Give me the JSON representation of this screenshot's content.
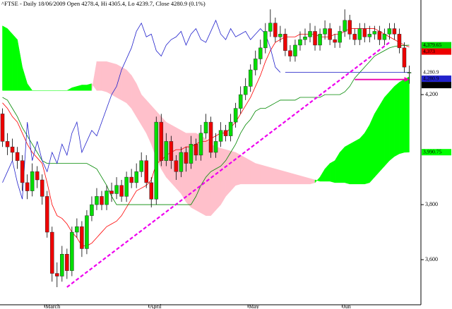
{
  "chart_data": {
    "type": "candlestick",
    "title": "^FTSE - Daily 18/06/2009 Open 4278.4, Hi 4305.4, Lo 4239.7, Close 4280.9 (0.1%)",
    "categories": [
      null,
      null,
      null,
      null,
      null,
      null,
      null,
      null,
      null,
      "March",
      null,
      null,
      null,
      null,
      null,
      null,
      null,
      null,
      null,
      null,
      null,
      null,
      null,
      null,
      null,
      null,
      null,
      null,
      null,
      null,
      "April",
      null,
      null,
      null,
      null,
      null,
      null,
      null,
      null,
      null,
      null,
      null,
      null,
      null,
      null,
      null,
      null,
      null,
      null,
      null,
      "May",
      null,
      null,
      null,
      null,
      null,
      null,
      null,
      null,
      null,
      null,
      null,
      null,
      null,
      null,
      null,
      null,
      null,
      null,
      "Jun",
      null,
      null,
      null,
      null,
      null,
      null,
      null,
      null,
      null,
      null,
      null,
      null,
      null
    ],
    "candles": [
      [
        4130,
        4150,
        4010,
        4030
      ],
      [
        4030,
        4060,
        3980,
        4010
      ],
      [
        4010,
        4040,
        3960,
        3990
      ],
      [
        3990,
        4010,
        3930,
        3960
      ],
      [
        3960,
        3980,
        3850,
        3880
      ],
      [
        3880,
        3910,
        3820,
        3850
      ],
      [
        3850,
        3950,
        3830,
        3920
      ],
      [
        3920,
        3940,
        3860,
        3890
      ],
      [
        3890,
        3910,
        3800,
        3830
      ],
      [
        3830,
        3850,
        3680,
        3700
      ],
      [
        3700,
        3720,
        3520,
        3550
      ],
      [
        3550,
        3590,
        3500,
        3540
      ],
      [
        3540,
        3650,
        3520,
        3620
      ],
      [
        3620,
        3640,
        3530,
        3560
      ],
      [
        3560,
        3720,
        3540,
        3700
      ],
      [
        3700,
        3750,
        3680,
        3720
      ],
      [
        3720,
        3740,
        3610,
        3640
      ],
      [
        3640,
        3780,
        3620,
        3760
      ],
      [
        3760,
        3830,
        3740,
        3800
      ],
      [
        3800,
        3860,
        3780,
        3830
      ],
      [
        3830,
        3850,
        3780,
        3800
      ],
      [
        3800,
        3870,
        3780,
        3850
      ],
      [
        3850,
        3880,
        3810,
        3840
      ],
      [
        3840,
        3900,
        3820,
        3870
      ],
      [
        3870,
        3890,
        3810,
        3830
      ],
      [
        3830,
        3920,
        3810,
        3900
      ],
      [
        3900,
        3930,
        3860,
        3880
      ],
      [
        3880,
        3950,
        3860,
        3920
      ],
      [
        3920,
        3990,
        3900,
        3960
      ],
      [
        3960,
        3980,
        3860,
        3880
      ],
      [
        3880,
        3900,
        3790,
        3820
      ],
      [
        3820,
        4120,
        3800,
        4100
      ],
      [
        4100,
        4130,
        3940,
        3960
      ],
      [
        3960,
        4060,
        3940,
        4030
      ],
      [
        4030,
        4050,
        3930,
        3960
      ],
      [
        3960,
        3980,
        3890,
        3920
      ],
      [
        3920,
        4010,
        3900,
        3990
      ],
      [
        3990,
        4010,
        3920,
        3950
      ],
      [
        3950,
        4050,
        3930,
        4020
      ],
      [
        4020,
        4040,
        3960,
        3980
      ],
      [
        3980,
        4090,
        3960,
        4060
      ],
      [
        4060,
        4130,
        4040,
        4100
      ],
      [
        4100,
        4120,
        3970,
        3990
      ],
      [
        3990,
        4060,
        3970,
        4030
      ],
      [
        4030,
        4100,
        4010,
        4070
      ],
      [
        4070,
        4090,
        4030,
        4050
      ],
      [
        4050,
        4130,
        4030,
        4100
      ],
      [
        4100,
        4170,
        4080,
        4150
      ],
      [
        4150,
        4230,
        4130,
        4200
      ],
      [
        4200,
        4260,
        4180,
        4230
      ],
      [
        4230,
        4310,
        4210,
        4290
      ],
      [
        4290,
        4360,
        4270,
        4330
      ],
      [
        4330,
        4400,
        4310,
        4370
      ],
      [
        4370,
        4460,
        4350,
        4430
      ],
      [
        4430,
        4510,
        4410,
        4460
      ],
      [
        4460,
        4480,
        4390,
        4410
      ],
      [
        4410,
        4450,
        4390,
        4420
      ],
      [
        4420,
        4440,
        4340,
        4360
      ],
      [
        4360,
        4380,
        4320,
        4340
      ],
      [
        4340,
        4400,
        4320,
        4380
      ],
      [
        4380,
        4430,
        4360,
        4400
      ],
      [
        4400,
        4440,
        4380,
        4410
      ],
      [
        4410,
        4460,
        4390,
        4430
      ],
      [
        4430,
        4450,
        4360,
        4380
      ],
      [
        4380,
        4440,
        4360,
        4420
      ],
      [
        4420,
        4470,
        4400,
        4440
      ],
      [
        4440,
        4460,
        4380,
        4400
      ],
      [
        4400,
        4420,
        4370,
        4390
      ],
      [
        4390,
        4450,
        4370,
        4430
      ],
      [
        4430,
        4510,
        4410,
        4470
      ],
      [
        4470,
        4490,
        4400,
        4420
      ],
      [
        4420,
        4440,
        4380,
        4400
      ],
      [
        4400,
        4460,
        4380,
        4440
      ],
      [
        4440,
        4460,
        4390,
        4410
      ],
      [
        4410,
        4450,
        4390,
        4420
      ],
      [
        4420,
        4450,
        4400,
        4430
      ],
      [
        4430,
        4450,
        4380,
        4400
      ],
      [
        4400,
        4440,
        4380,
        4420
      ],
      [
        4420,
        4460,
        4400,
        4440
      ],
      [
        4440,
        4460,
        4400,
        4420
      ],
      [
        4420,
        4440,
        4350,
        4370
      ],
      [
        4370,
        4390,
        4280,
        4300
      ],
      [
        4278.4,
        4305.4,
        4239.7,
        4280.9
      ]
    ],
    "up_color": "#00dd00",
    "down_color": "#ee0000",
    "lines": [
      {
        "color": "#ff0000",
        "values": [
          4170,
          4150,
          4120,
          4100,
          4060,
          4020,
          3990,
          3970,
          3950,
          3880,
          3800,
          3760,
          3750,
          3730,
          3700,
          3680,
          3650,
          3650,
          3660,
          3680,
          3700,
          3720,
          3730,
          3740,
          3760,
          3790,
          3820,
          3850,
          3860,
          3870,
          3890,
          3950,
          3960,
          3980,
          3990,
          4000,
          4000,
          4010,
          4010,
          4020,
          4030,
          4030,
          4040,
          4050,
          4060,
          4060,
          4080,
          4100,
          4130,
          4160,
          4190,
          4230,
          4270,
          4320,
          4360,
          4390,
          4400,
          4410,
          4410,
          4410,
          4420,
          4420,
          4420,
          4420,
          4410,
          4410,
          4410,
          4420,
          4420,
          4430,
          4440,
          4440,
          4440,
          4440,
          4440,
          4440,
          4430,
          4420,
          4410,
          4400,
          4390,
          4380,
          4373
        ]
      },
      {
        "color": "#008800",
        "values": [
          4190,
          4180,
          4150,
          4120,
          4080,
          4050,
          4020,
          3990,
          3960,
          3950,
          3950,
          3950,
          3950,
          3950,
          3950,
          3950,
          3950,
          3950,
          3940,
          3930,
          3900,
          3870,
          3830,
          3800,
          3800,
          3800,
          3800,
          3800,
          3800,
          3800,
          3800,
          3800,
          3800,
          3800,
          3800,
          3800,
          3800,
          3800,
          3800,
          3830,
          3870,
          3900,
          3920,
          3930,
          3940,
          3960,
          3990,
          4020,
          4060,
          4090,
          4110,
          4140,
          4150,
          4150,
          4160,
          4170,
          4180,
          4180,
          4180,
          4180,
          4190,
          4190,
          4190,
          4190,
          4190,
          4200,
          4200,
          4200,
          4200,
          4210,
          4230,
          4260,
          4280,
          4300,
          4320,
          4340,
          4350,
          4360,
          4370,
          4375,
          4378,
          4379,
          4379.65
        ]
      },
      {
        "color": "#2222cc",
        "values": [
          3880,
          3920,
          3960,
          3880,
          3820,
          4100,
          3960,
          4030,
          3960,
          3920,
          3990,
          3950,
          4020,
          3980,
          4060,
          4100,
          3990,
          4030,
          4070,
          4050,
          4100,
          4150,
          4200,
          4230,
          4290,
          4330,
          4370,
          4430,
          4460,
          4410,
          4420,
          4360,
          4340,
          4380,
          4400,
          4410,
          4430,
          4380,
          4420,
          4440,
          4400,
          4390,
          4430,
          4470,
          4420,
          4400,
          4440,
          4410,
          4420,
          4430,
          4400,
          4420,
          4440,
          4420,
          4370,
          4300,
          4280.9,
          null,
          null,
          null,
          null,
          null,
          null,
          null,
          null,
          null,
          null,
          null,
          null,
          null,
          null,
          null,
          null,
          null,
          null,
          null,
          null,
          null,
          null,
          null,
          null,
          null,
          null
        ]
      }
    ],
    "cloud": {
      "up_color": "#00ff00",
      "down_color": "#ffc0cb",
      "span_a": [
        4450,
        4440,
        4420,
        4400,
        4300,
        4240,
        4215,
        4215,
        4215,
        4215,
        4215,
        4215,
        4215,
        4215,
        4225,
        4230,
        4235,
        4235,
        4240,
        4215,
        4215,
        4210,
        4200,
        4190,
        4180,
        4170,
        4150,
        4120,
        4090,
        4060,
        4020,
        3970,
        3930,
        3900,
        3880,
        3860,
        3840,
        3810,
        3790,
        3780,
        3770,
        3760,
        3760,
        3780,
        3800,
        3830,
        3850,
        3870,
        3875,
        3875,
        3875,
        3875,
        3875,
        3875,
        3875,
        3875,
        3875,
        3875,
        3875,
        3875,
        3875,
        3875,
        3875,
        3880,
        3900,
        3930,
        3950,
        3960,
        3990,
        4010,
        4020,
        4030,
        4040,
        4060,
        4090,
        4130,
        4160,
        4190,
        4210,
        4230,
        4245,
        4255,
        4265
      ],
      "span_b": [
        4215,
        4215,
        4215,
        4215,
        4215,
        4215,
        4215,
        4215,
        4215,
        4215,
        4215,
        4215,
        4215,
        4215,
        4215,
        4215,
        4215,
        4215,
        4215,
        4320,
        4320,
        4320,
        4315,
        4310,
        4300,
        4290,
        4270,
        4240,
        4200,
        4180,
        4160,
        4140,
        4120,
        4100,
        4090,
        4080,
        4070,
        4060,
        4060,
        4060,
        4050,
        4040,
        4020,
        4010,
        4005,
        4000,
        3995,
        3990,
        3980,
        3970,
        3960,
        3950,
        3945,
        3940,
        3935,
        3930,
        3925,
        3920,
        3915,
        3910,
        3905,
        3900,
        3895,
        3890,
        3885,
        3885,
        3885,
        3880,
        3880,
        3880,
        3875,
        3875,
        3875,
        3875,
        3880,
        3900,
        3920,
        3940,
        3960,
        3975,
        3985,
        3990,
        3990.75
      ]
    },
    "hline": {
      "value": 4280.9,
      "from": 57,
      "to": 82,
      "color": "#3333cc"
    },
    "trendline": {
      "from": [
        13,
        3500
      ],
      "to": [
        78,
        4390
      ],
      "color": "#ee00ee"
    },
    "arrow": {
      "from": 71,
      "to": 82,
      "value": 4255,
      "color": "#ee00aa"
    },
    "price_labels": [
      {
        "value": 4379.65,
        "label": "4,379.65",
        "color": "#00dd00",
        "text_color": "#000000"
      },
      {
        "value": 4373,
        "label": "4,373",
        "color": "#ee0000",
        "text_color": "#000000"
      },
      {
        "value": 4280.9,
        "label": "4,280.9",
        "color": "#ffffff",
        "text_color": "#ee0000"
      },
      {
        "value": 4280.9,
        "label": "4,280.9",
        "color": "#2222cc",
        "text_color": "#ffffff"
      },
      {
        "value": 4280.9,
        "label": "4,280.9",
        "color": "#000000",
        "text_color": "#ffffff"
      },
      {
        "value": 3990.75,
        "label": "3,990.75",
        "color": "#00ff00",
        "text_color": "#000000"
      }
    ],
    "ylim": [
      3436,
      4544
    ],
    "yticks": [
      {
        "value": 3600,
        "label": "3,600"
      },
      {
        "value": 3800,
        "label": "3,800"
      },
      {
        "value": 4200,
        "label": "4,200"
      }
    ]
  }
}
